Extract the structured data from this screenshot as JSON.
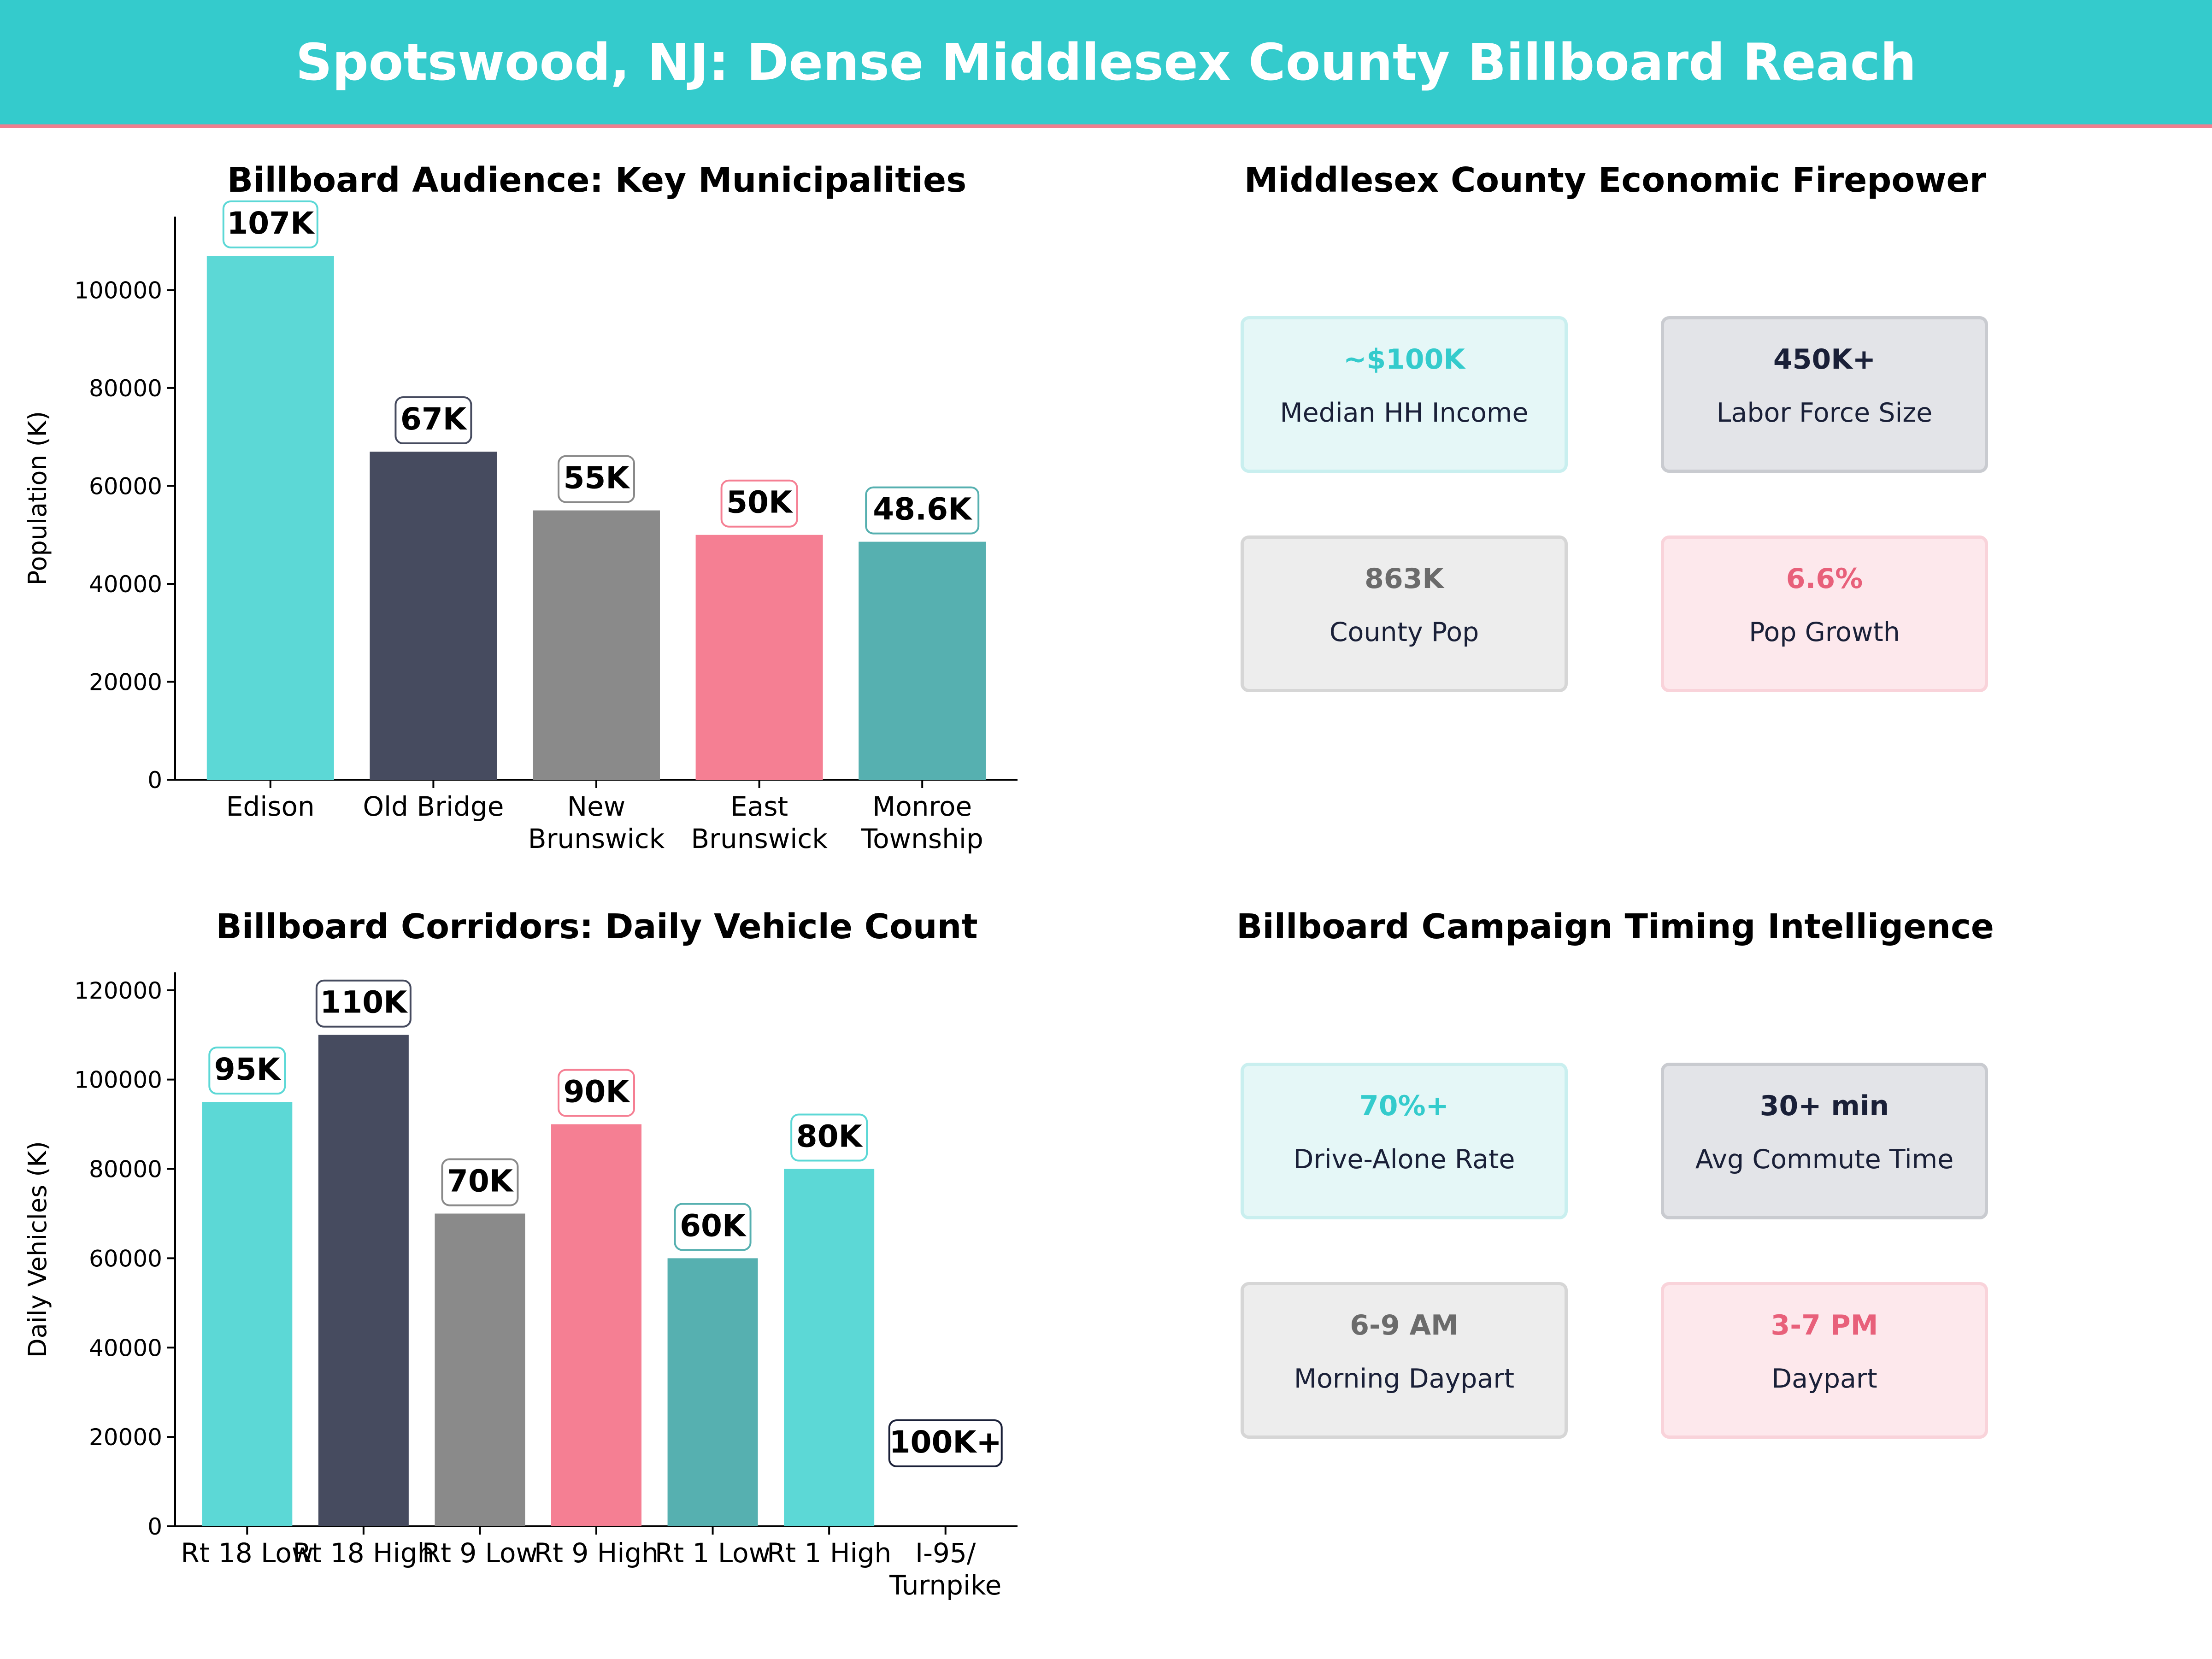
{
  "header": {
    "title": "Spotswood, NJ: Dense Middlesex County Billboard Reach"
  },
  "colors": {
    "teal": "#5CD8D6",
    "navy": "#464B5F",
    "gray": "#8A8A8A",
    "pink": "#F57F93",
    "darkteal": "#56B0B0",
    "stat_teal": "#34CBCC",
    "stat_navy": "#1A2038",
    "stat_gray": "#6B6B6B",
    "stat_pink": "#E8607A"
  },
  "chart_data": [
    {
      "type": "bar",
      "title": "Billboard Audience: Key Municipalities",
      "ylabel": "Population (K)",
      "xlabel": "",
      "categories": [
        "Edison",
        "Old Bridge",
        "New\nBrunswick",
        "East\nBrunswick",
        "Monroe\nTownship"
      ],
      "values": [
        107000,
        67000,
        55000,
        50000,
        48600
      ],
      "data_labels": [
        "107K",
        "67K",
        "55K",
        "50K",
        "48.6K"
      ],
      "bar_colors": [
        "teal",
        "navy",
        "gray",
        "pink",
        "darkteal"
      ],
      "yticks": [
        0,
        20000,
        40000,
        60000,
        80000,
        100000
      ],
      "ylim": [
        0,
        115000
      ],
      "grid": false,
      "legend": false
    },
    {
      "type": "bar",
      "title": "Billboard Corridors: Daily Vehicle Count",
      "ylabel": "Daily Vehicles (K)",
      "xlabel": "",
      "categories": [
        "Rt 18 Low",
        "Rt 18 High",
        "Rt 9 Low",
        "Rt 9 High",
        "Rt 1 Low",
        "Rt 1 High",
        "I-95/\nTurnpike"
      ],
      "values": [
        95000,
        110000,
        70000,
        90000,
        60000,
        80000,
        null
      ],
      "data_labels": [
        "95K",
        "110K",
        "70K",
        "90K",
        "60K",
        "80K",
        "100K+"
      ],
      "bar_colors": [
        "teal",
        "navy",
        "gray",
        "pink",
        "darkteal",
        "teal",
        "navy"
      ],
      "yticks": [
        0,
        20000,
        40000,
        60000,
        80000,
        100000,
        120000
      ],
      "ylim": [
        0,
        124000
      ],
      "grid": false,
      "legend": false
    }
  ],
  "stats_economic": {
    "title": "Middlesex County Economic Firepower",
    "cards": [
      {
        "value": "~$100K",
        "label": "Median HH Income",
        "color": "teal"
      },
      {
        "value": "450K+",
        "label": "Labor Force Size",
        "color": "navy"
      },
      {
        "value": "863K",
        "label": "County Pop",
        "color": "gray"
      },
      {
        "value": "6.6%",
        "label": "Pop Growth",
        "color": "pink"
      }
    ]
  },
  "stats_timing": {
    "title": "Billboard Campaign Timing Intelligence",
    "cards": [
      {
        "value": "70%+",
        "label": "Drive-Alone Rate",
        "color": "teal"
      },
      {
        "value": "30+ min",
        "label": "Avg Commute Time",
        "color": "navy"
      },
      {
        "value": "6-9 AM",
        "label": "Morning Daypart",
        "color": "gray"
      },
      {
        "value": "3-7 PM",
        "label": "Daypart",
        "color": "pink"
      }
    ]
  }
}
